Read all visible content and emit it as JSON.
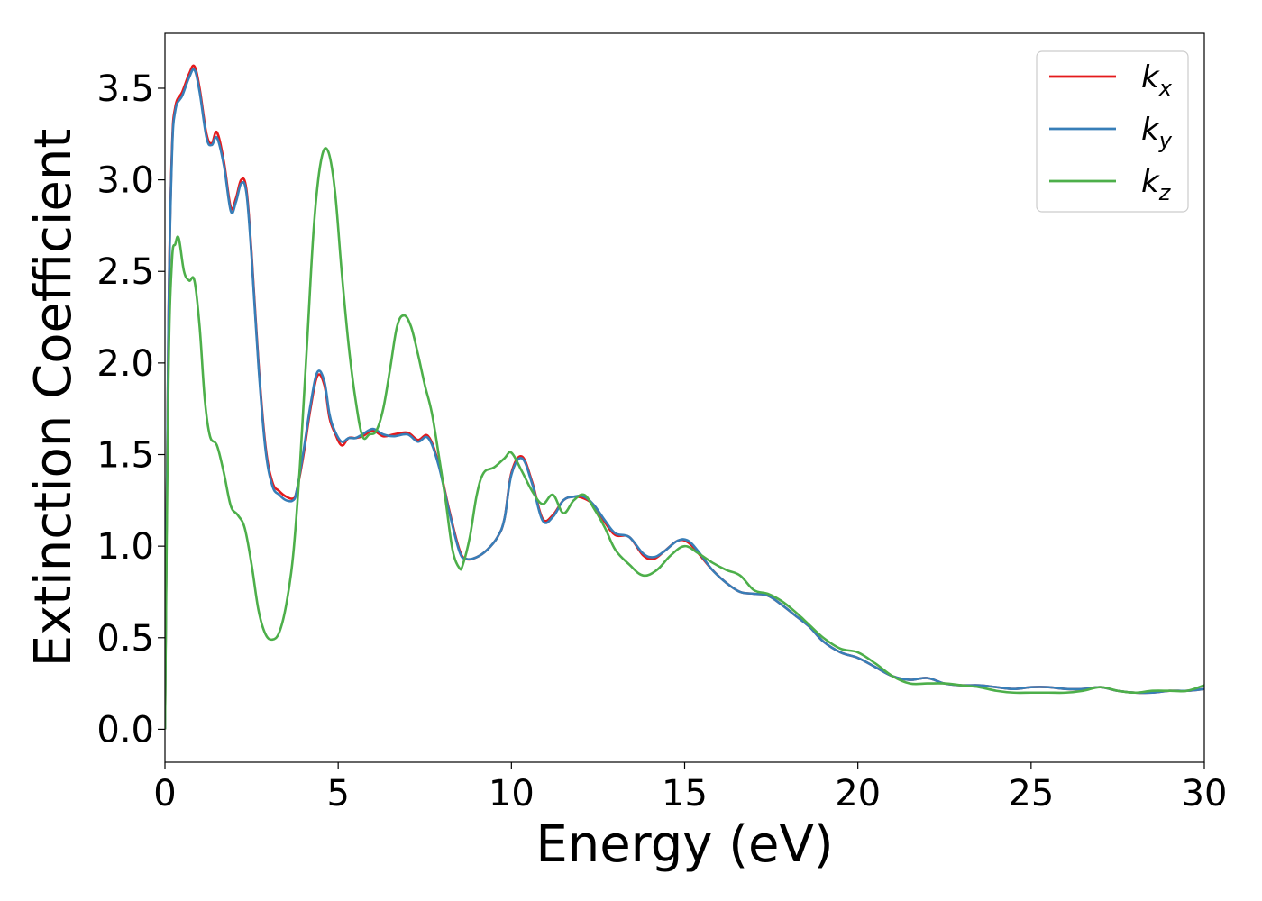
{
  "chart_data": {
    "type": "line",
    "title": "",
    "xlabel": "Energy (eV)",
    "ylabel": "Extinction Coefficient",
    "xlim": [
      0,
      30
    ],
    "ylim": [
      -0.18,
      3.8
    ],
    "xticks": [
      0,
      5,
      10,
      15,
      20,
      25,
      30
    ],
    "xtick_labels": [
      "0",
      "5",
      "10",
      "15",
      "20",
      "25",
      "30"
    ],
    "yticks": [
      0.0,
      0.5,
      1.0,
      1.5,
      2.0,
      2.5,
      3.0,
      3.5
    ],
    "ytick_labels": [
      "0.0",
      "0.5",
      "1.0",
      "1.5",
      "2.0",
      "2.5",
      "3.0",
      "3.5"
    ],
    "grid": false,
    "legend_position": "top-right",
    "series": [
      {
        "name": "kx",
        "label_main": "k",
        "label_sub": "x",
        "color": "#e41a1c",
        "x": [
          0,
          0.1,
          0.2,
          0.3,
          0.5,
          0.7,
          0.85,
          1.0,
          1.2,
          1.35,
          1.5,
          1.7,
          1.9,
          2.05,
          2.2,
          2.35,
          2.5,
          2.7,
          2.9,
          3.1,
          3.3,
          3.5,
          3.7,
          3.8,
          4.0,
          4.2,
          4.4,
          4.6,
          4.75,
          4.9,
          5.1,
          5.3,
          5.5,
          5.7,
          6.0,
          6.3,
          6.6,
          7.0,
          7.3,
          7.6,
          7.9,
          8.2,
          8.5,
          8.7,
          9.0,
          9.3,
          9.6,
          9.8,
          10.0,
          10.3,
          10.6,
          10.9,
          11.2,
          11.5,
          11.8,
          12.1,
          12.4,
          12.7,
          13.0,
          13.4,
          13.8,
          14.1,
          14.4,
          14.8,
          15.1,
          15.4,
          15.8,
          16.2,
          16.6,
          17.0,
          17.4,
          17.8,
          18.2,
          18.6,
          19.0,
          19.5,
          20.0,
          20.5,
          21.0,
          21.5,
          22.0,
          22.5,
          23.0,
          23.5,
          24.0,
          24.5,
          25.0,
          25.5,
          26.0,
          26.5,
          27.0,
          27.5,
          28.0,
          28.5,
          29.0,
          29.5,
          30.0
        ],
        "y": [
          0.0,
          2.2,
          3.15,
          3.4,
          3.48,
          3.58,
          3.62,
          3.5,
          3.25,
          3.2,
          3.26,
          3.1,
          2.85,
          2.9,
          3.0,
          2.95,
          2.6,
          2.0,
          1.55,
          1.35,
          1.3,
          1.27,
          1.26,
          1.3,
          1.5,
          1.75,
          1.93,
          1.88,
          1.7,
          1.62,
          1.55,
          1.59,
          1.59,
          1.6,
          1.63,
          1.6,
          1.61,
          1.62,
          1.58,
          1.6,
          1.45,
          1.2,
          0.98,
          0.93,
          0.94,
          0.98,
          1.05,
          1.15,
          1.4,
          1.49,
          1.35,
          1.15,
          1.17,
          1.25,
          1.27,
          1.26,
          1.22,
          1.13,
          1.06,
          1.05,
          0.95,
          0.93,
          0.97,
          1.03,
          1.02,
          0.96,
          0.87,
          0.8,
          0.75,
          0.74,
          0.73,
          0.68,
          0.62,
          0.56,
          0.48,
          0.42,
          0.39,
          0.34,
          0.29,
          0.27,
          0.28,
          0.25,
          0.24,
          0.24,
          0.23,
          0.22,
          0.23,
          0.23,
          0.22,
          0.22,
          0.23,
          0.21,
          0.2,
          0.2,
          0.21,
          0.21,
          0.22
        ]
      },
      {
        "name": "ky",
        "label_main": "k",
        "label_sub": "y",
        "color": "#377eb8",
        "x": [
          0,
          0.1,
          0.2,
          0.3,
          0.5,
          0.7,
          0.85,
          1.0,
          1.2,
          1.35,
          1.5,
          1.7,
          1.9,
          2.05,
          2.2,
          2.35,
          2.5,
          2.7,
          2.9,
          3.1,
          3.3,
          3.5,
          3.7,
          3.8,
          4.0,
          4.2,
          4.4,
          4.6,
          4.75,
          4.9,
          5.1,
          5.3,
          5.5,
          5.7,
          6.0,
          6.3,
          6.6,
          7.0,
          7.3,
          7.6,
          7.9,
          8.2,
          8.5,
          8.7,
          9.0,
          9.3,
          9.6,
          9.8,
          10.0,
          10.3,
          10.6,
          10.9,
          11.2,
          11.5,
          11.8,
          12.1,
          12.4,
          12.7,
          13.0,
          13.4,
          13.8,
          14.1,
          14.4,
          14.8,
          15.1,
          15.4,
          15.8,
          16.2,
          16.6,
          17.0,
          17.4,
          17.8,
          18.2,
          18.6,
          19.0,
          19.5,
          20.0,
          20.5,
          21.0,
          21.5,
          22.0,
          22.5,
          23.0,
          23.5,
          24.0,
          24.5,
          25.0,
          25.5,
          26.0,
          26.5,
          27.0,
          27.5,
          28.0,
          28.5,
          29.0,
          29.5,
          30.0
        ],
        "y": [
          0.0,
          2.18,
          3.12,
          3.38,
          3.46,
          3.56,
          3.6,
          3.48,
          3.23,
          3.19,
          3.23,
          3.08,
          2.83,
          2.88,
          2.98,
          2.93,
          2.58,
          1.98,
          1.53,
          1.33,
          1.28,
          1.25,
          1.25,
          1.3,
          1.52,
          1.77,
          1.95,
          1.9,
          1.72,
          1.63,
          1.57,
          1.59,
          1.59,
          1.61,
          1.64,
          1.61,
          1.6,
          1.61,
          1.57,
          1.59,
          1.44,
          1.19,
          0.97,
          0.93,
          0.94,
          0.98,
          1.05,
          1.15,
          1.39,
          1.48,
          1.34,
          1.14,
          1.16,
          1.25,
          1.27,
          1.27,
          1.22,
          1.14,
          1.07,
          1.05,
          0.96,
          0.94,
          0.97,
          1.03,
          1.03,
          0.97,
          0.87,
          0.8,
          0.75,
          0.74,
          0.73,
          0.68,
          0.62,
          0.56,
          0.48,
          0.42,
          0.39,
          0.34,
          0.29,
          0.27,
          0.28,
          0.25,
          0.24,
          0.24,
          0.23,
          0.22,
          0.23,
          0.23,
          0.22,
          0.22,
          0.23,
          0.21,
          0.2,
          0.2,
          0.21,
          0.21,
          0.22
        ]
      },
      {
        "name": "kz",
        "label_main": "k",
        "label_sub": "z",
        "color": "#4daf4a",
        "x": [
          0,
          0.1,
          0.2,
          0.3,
          0.4,
          0.55,
          0.7,
          0.85,
          1.0,
          1.15,
          1.3,
          1.5,
          1.7,
          1.9,
          2.1,
          2.3,
          2.5,
          2.7,
          2.9,
          3.1,
          3.3,
          3.5,
          3.7,
          3.9,
          4.1,
          4.3,
          4.5,
          4.7,
          4.9,
          5.1,
          5.3,
          5.5,
          5.7,
          5.9,
          6.1,
          6.3,
          6.5,
          6.7,
          6.9,
          7.1,
          7.3,
          7.5,
          7.7,
          7.9,
          8.1,
          8.3,
          8.5,
          8.6,
          8.8,
          9.0,
          9.2,
          9.5,
          9.8,
          10.0,
          10.3,
          10.6,
          10.9,
          11.2,
          11.5,
          11.8,
          12.1,
          12.4,
          12.7,
          13.0,
          13.4,
          13.8,
          14.2,
          14.6,
          15.0,
          15.4,
          15.8,
          16.2,
          16.6,
          17.0,
          17.4,
          17.8,
          18.2,
          18.6,
          19.0,
          19.5,
          20.0,
          20.5,
          21.0,
          21.5,
          22.0,
          22.5,
          23.0,
          23.5,
          24.0,
          24.5,
          25.0,
          25.5,
          26.0,
          26.5,
          27.0,
          27.5,
          28.0,
          28.5,
          29.0,
          29.5,
          30.0
        ],
        "y": [
          0.0,
          1.9,
          2.55,
          2.65,
          2.68,
          2.5,
          2.45,
          2.45,
          2.2,
          1.8,
          1.6,
          1.55,
          1.4,
          1.22,
          1.17,
          1.1,
          0.9,
          0.65,
          0.52,
          0.49,
          0.53,
          0.68,
          0.95,
          1.45,
          2.1,
          2.75,
          3.1,
          3.16,
          2.95,
          2.5,
          2.1,
          1.8,
          1.6,
          1.61,
          1.63,
          1.75,
          1.97,
          2.2,
          2.26,
          2.2,
          2.05,
          1.88,
          1.73,
          1.5,
          1.25,
          0.98,
          0.88,
          0.9,
          1.05,
          1.28,
          1.4,
          1.43,
          1.48,
          1.51,
          1.41,
          1.3,
          1.23,
          1.28,
          1.18,
          1.25,
          1.28,
          1.2,
          1.1,
          0.98,
          0.9,
          0.84,
          0.87,
          0.95,
          1.0,
          0.96,
          0.91,
          0.87,
          0.84,
          0.76,
          0.74,
          0.7,
          0.64,
          0.57,
          0.5,
          0.44,
          0.42,
          0.36,
          0.29,
          0.25,
          0.25,
          0.25,
          0.24,
          0.23,
          0.21,
          0.2,
          0.2,
          0.2,
          0.2,
          0.21,
          0.23,
          0.21,
          0.2,
          0.21,
          0.21,
          0.21,
          0.24
        ]
      }
    ]
  }
}
